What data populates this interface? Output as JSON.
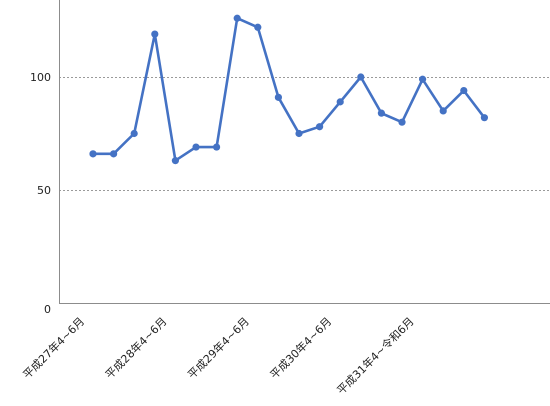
{
  "chart_data": {
    "type": "line",
    "title": "",
    "xlabel": "",
    "ylabel": "",
    "ylim": [
      0,
      135
    ],
    "y_ticks": [
      0,
      50,
      100
    ],
    "grid": true,
    "legend": "none",
    "x": [
      "1",
      "2",
      "3",
      "4",
      "5",
      "6",
      "7",
      "8",
      "9",
      "10",
      "11",
      "12",
      "13",
      "14",
      "15",
      "16",
      "17",
      "18",
      "19",
      "20"
    ],
    "x_tick_labels": [
      {
        "at": "1",
        "label": "平成27年4~6月"
      },
      {
        "at": "5",
        "label": "平成28年4~6月"
      },
      {
        "at": "9",
        "label": "平成29年4~6月"
      },
      {
        "at": "13",
        "label": "平成30年4~6月"
      },
      {
        "at": "17",
        "label": "平成31年4~令和6月"
      }
    ],
    "series": [
      {
        "values": [
          66,
          66,
          75,
          119,
          63,
          69,
          69,
          126,
          122,
          91,
          75,
          78,
          89,
          100,
          84,
          80,
          99,
          85,
          94,
          82
        ],
        "color": "#4472c4"
      }
    ]
  }
}
